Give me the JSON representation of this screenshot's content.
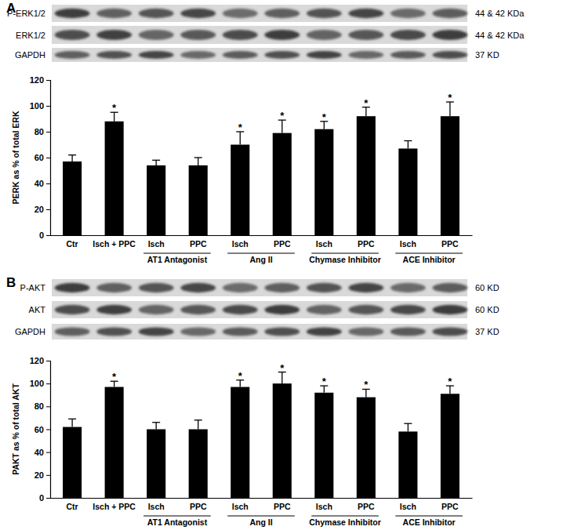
{
  "chart_data": [
    {
      "type": "bar",
      "panel": "A",
      "blots": [
        {
          "label": "P-ERK1/2",
          "size": "44 & 42 KDa"
        },
        {
          "label": "ERK1/2",
          "size": "44 & 42 KDa"
        },
        {
          "label": "GAPDH",
          "size": "37 KD"
        }
      ],
      "ylabel": "PERK as % of total ERK",
      "categories": [
        "Ctr",
        "Isch + PPC",
        "Isch",
        "PPC",
        "Isch",
        "PPC",
        "Isch",
        "PPC",
        "Isch",
        "PPC"
      ],
      "groups": [
        null,
        null,
        "AT1 Antagonist",
        "AT1 Antagonist",
        "Ang II",
        "Ang II",
        "Chymase Inhibitor",
        "Chymase Inhibitor",
        "ACE Inhibitor",
        "ACE Inhibitor"
      ],
      "values": [
        57,
        88,
        54,
        54,
        70,
        79,
        82,
        92,
        67,
        92
      ],
      "errors": [
        5,
        7,
        4,
        6,
        10,
        10,
        6,
        7,
        6,
        11
      ],
      "significance": [
        null,
        "*",
        null,
        null,
        "*",
        "*",
        "*",
        "*",
        null,
        "*"
      ],
      "color": "#000000",
      "ylim": [
        0,
        120
      ],
      "yticks": [
        0,
        20,
        40,
        60,
        80,
        100,
        120
      ]
    },
    {
      "type": "bar",
      "panel": "B",
      "blots": [
        {
          "label": "P-AKT",
          "size": "60 KD"
        },
        {
          "label": "AKT",
          "size": "60 KD"
        },
        {
          "label": "GAPDH",
          "size": "37 KD"
        }
      ],
      "ylabel": "PAKT as % of total AKT",
      "categories": [
        "Ctr",
        "Isch + PPC",
        "Isch",
        "PPC",
        "Isch",
        "PPC",
        "Isch",
        "PPC",
        "Isch",
        "PPC"
      ],
      "groups": [
        null,
        null,
        "AT1 Antagonist",
        "AT1 Antagonist",
        "Ang II",
        "Ang II",
        "Chymase Inhibitor",
        "Chymase Inhibitor",
        "ACE Inhibitor",
        "ACE Inhibitor"
      ],
      "values": [
        62,
        97,
        60,
        60,
        97,
        100,
        92,
        88,
        58,
        91
      ],
      "errors": [
        7,
        5,
        6,
        8,
        6,
        10,
        6,
        7,
        7,
        7
      ],
      "significance": [
        null,
        "*",
        null,
        null,
        "*",
        "*",
        "*",
        "*",
        null,
        "*"
      ],
      "color": "#000000",
      "ylim": [
        0,
        120
      ],
      "yticks": [
        0,
        20,
        40,
        60,
        80,
        100,
        120
      ]
    }
  ]
}
